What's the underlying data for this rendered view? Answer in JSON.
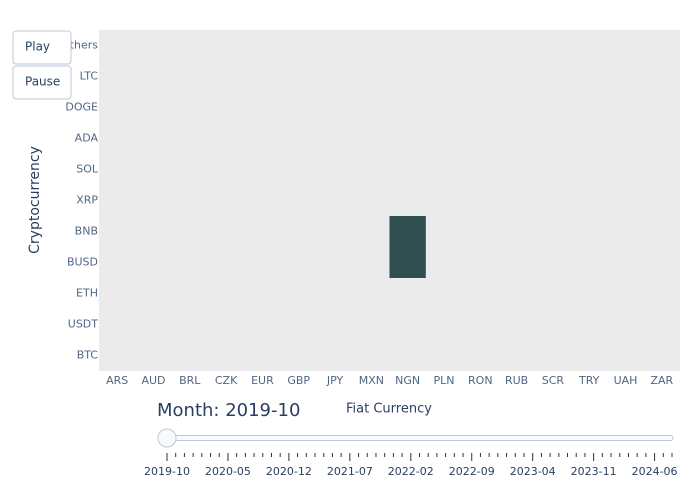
{
  "chart_data": {
    "type": "heatmap",
    "x_label": "Fiat Currency",
    "y_label": "Cryptocurrency",
    "categories": [
      "ARS",
      "AUD",
      "BRL",
      "CZK",
      "EUR",
      "GBP",
      "JPY",
      "MXN",
      "NGN",
      "PLN",
      "RON",
      "RUB",
      "SCR",
      "TRY",
      "UAH",
      "ZAR"
    ],
    "y_categories": [
      "BTC",
      "USDT",
      "ETH",
      "BUSD",
      "BNB",
      "XRP",
      "SOL",
      "ADA",
      "DOGE",
      "LTC",
      "Others"
    ],
    "color": "#2f4f4f",
    "z": [
      [
        null,
        null,
        null,
        null,
        null,
        null,
        null,
        null,
        null,
        null,
        null,
        null,
        null,
        null,
        null,
        null
      ],
      [
        null,
        null,
        null,
        null,
        null,
        null,
        null,
        null,
        null,
        null,
        null,
        null,
        null,
        null,
        null,
        null
      ],
      [
        null,
        null,
        null,
        null,
        null,
        null,
        null,
        null,
        null,
        null,
        null,
        null,
        null,
        null,
        null,
        null
      ],
      [
        null,
        null,
        null,
        null,
        null,
        null,
        null,
        null,
        1,
        null,
        null,
        null,
        null,
        null,
        null,
        null
      ],
      [
        null,
        null,
        null,
        null,
        null,
        null,
        null,
        null,
        1,
        null,
        null,
        null,
        null,
        null,
        null,
        null
      ],
      [
        null,
        null,
        null,
        null,
        null,
        null,
        null,
        null,
        null,
        null,
        null,
        null,
        null,
        null,
        null,
        null
      ],
      [
        null,
        null,
        null,
        null,
        null,
        null,
        null,
        null,
        null,
        null,
        null,
        null,
        null,
        null,
        null,
        null
      ],
      [
        null,
        null,
        null,
        null,
        null,
        null,
        null,
        null,
        null,
        null,
        null,
        null,
        null,
        null,
        null,
        null
      ],
      [
        null,
        null,
        null,
        null,
        null,
        null,
        null,
        null,
        null,
        null,
        null,
        null,
        null,
        null,
        null,
        null
      ],
      [
        null,
        null,
        null,
        null,
        null,
        null,
        null,
        null,
        null,
        null,
        null,
        null,
        null,
        null,
        null,
        null
      ],
      [
        null,
        null,
        null,
        null,
        null,
        null,
        null,
        null,
        null,
        null,
        null,
        null,
        null,
        null,
        null,
        null
      ]
    ],
    "buttons": [
      "Play",
      "Pause"
    ],
    "slider": {
      "prefix": "Month: ",
      "current": "2019-10",
      "ticks": [
        "2019-10",
        null,
        null,
        null,
        null,
        null,
        null,
        "2020-05",
        null,
        null,
        null,
        null,
        null,
        null,
        "2020-12",
        null,
        null,
        null,
        null,
        null,
        null,
        "2021-07",
        null,
        null,
        null,
        null,
        null,
        null,
        "2022-02",
        null,
        null,
        null,
        null,
        null,
        null,
        "2022-09",
        null,
        null,
        null,
        null,
        null,
        null,
        "2023-04",
        null,
        null,
        null,
        null,
        null,
        null,
        "2023-11",
        null,
        null,
        null,
        null,
        null,
        null,
        "2024-06",
        null,
        null
      ]
    }
  }
}
